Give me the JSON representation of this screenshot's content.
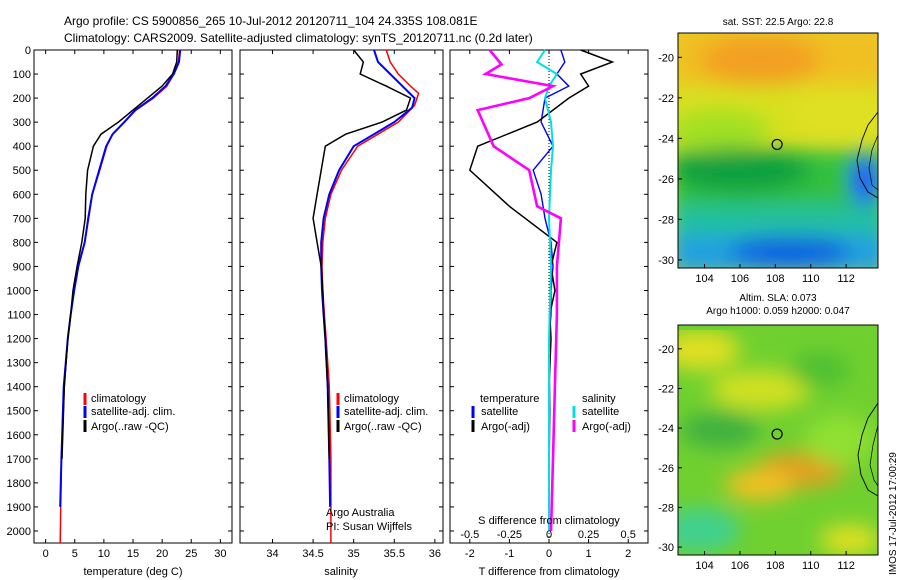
{
  "header": {
    "title_line1": "Argo profile: CS 5900856_265 10-Jul-2012 20120711_104 24.335S 108.081E",
    "title_line2": "Climatology: CARS2009. Satellite-adjusted climatology: synTS_20120711.nc (0.2d later)"
  },
  "colors": {
    "climatology": "#ff0000",
    "satellite": "#0000ff",
    "argo": "#000000",
    "salinity_sat": "#00e0e0",
    "salinity_argo": "#ff00ff"
  },
  "chart_data": [
    {
      "type": "line",
      "id": "temperature",
      "xlabel": "temperature (deg C)",
      "xlim": [
        -2,
        32
      ],
      "ylim": [
        0,
        2050
      ],
      "xticks": [
        0,
        5,
        10,
        15,
        20,
        25,
        30
      ],
      "yticks": [
        0,
        100,
        200,
        300,
        400,
        500,
        600,
        700,
        800,
        900,
        1000,
        1100,
        1200,
        1300,
        1400,
        1500,
        1600,
        1700,
        1800,
        1900,
        2000
      ],
      "legend": [
        "climatology",
        "satellite-adj. clim.",
        "Argo(..raw -QC)"
      ],
      "series": [
        {
          "name": "climatology",
          "color": "#ff0000",
          "x": [
            23,
            22.8,
            22,
            20.8,
            18.5,
            15.5,
            13.5,
            11.5,
            10.5,
            9.3,
            8,
            7.4,
            6.7,
            5.5,
            4.8,
            4.3,
            3.8,
            3.2,
            2.7,
            2.5
          ],
          "y": [
            0,
            50,
            100,
            150,
            200,
            250,
            300,
            350,
            400,
            500,
            600,
            700,
            800,
            900,
            1000,
            1100,
            1200,
            1400,
            1700,
            2050
          ]
        },
        {
          "name": "satellite-adj. clim.",
          "color": "#0000ff",
          "x": [
            23.1,
            22.9,
            22,
            20.6,
            18.3,
            15.4,
            13.5,
            11.5,
            10.4,
            9.2,
            8,
            7.3,
            6.7,
            5.6,
            4.9,
            4.3,
            3.8,
            3.1,
            2.7,
            2.5
          ],
          "y": [
            0,
            50,
            100,
            150,
            200,
            250,
            300,
            350,
            400,
            500,
            600,
            700,
            800,
            900,
            1000,
            1100,
            1200,
            1400,
            1700,
            1900
          ]
        },
        {
          "name": "Argo(..raw -QC)",
          "color": "#000000",
          "x": [
            22.6,
            22.5,
            21.8,
            20,
            17.5,
            15,
            12.5,
            9.5,
            8.2,
            7.2,
            6.9,
            6.8,
            6.2,
            5.4,
            4.7,
            4.3,
            3.8,
            3.2,
            2.8
          ],
          "y": [
            0,
            50,
            100,
            150,
            200,
            250,
            300,
            350,
            400,
            500,
            600,
            700,
            800,
            900,
            1000,
            1100,
            1200,
            1400,
            1700
          ]
        }
      ]
    },
    {
      "type": "line",
      "id": "salinity",
      "xlabel": "salinity",
      "xlim": [
        33.6,
        36.1
      ],
      "ylim": [
        0,
        2050
      ],
      "xticks": [
        34,
        34.5,
        35,
        35.5,
        36
      ],
      "legend": [
        "climatology",
        "satellite-adj. clim.",
        "Argo(..raw -QC)"
      ],
      "annotation": [
        "Argo Australia",
        "PI: Susan Wijffels"
      ],
      "series": [
        {
          "name": "climatology",
          "color": "#ff0000",
          "x": [
            35.4,
            35.45,
            35.55,
            35.7,
            35.8,
            35.75,
            35.55,
            35.3,
            35.05,
            34.85,
            34.72,
            34.65,
            34.62,
            34.61,
            34.62,
            34.64,
            34.66,
            34.7,
            34.72,
            34.72
          ],
          "y": [
            0,
            50,
            100,
            150,
            180,
            230,
            300,
            350,
            400,
            500,
            600,
            700,
            800,
            900,
            1000,
            1100,
            1200,
            1400,
            1700,
            2050
          ]
        },
        {
          "name": "satellite-adj. clim.",
          "color": "#0000ff",
          "x": [
            35.25,
            35.3,
            35.45,
            35.6,
            35.75,
            35.72,
            35.5,
            35.25,
            35,
            34.82,
            34.7,
            34.63,
            34.6,
            34.6,
            34.61,
            34.63,
            34.65,
            34.68,
            34.7,
            34.71
          ],
          "y": [
            0,
            50,
            100,
            150,
            200,
            240,
            300,
            350,
            400,
            500,
            600,
            700,
            800,
            900,
            1000,
            1100,
            1200,
            1400,
            1700,
            1900
          ]
        },
        {
          "name": "Argo(..raw -QC)",
          "color": "#000000",
          "x": [
            35.0,
            35.12,
            35.08,
            35.4,
            35.7,
            35.65,
            35.35,
            34.9,
            34.65,
            34.6,
            34.55,
            34.5,
            34.55,
            34.6,
            34.62,
            34.63,
            34.65,
            34.68,
            34.7
          ],
          "y": [
            0,
            50,
            100,
            150,
            200,
            250,
            300,
            350,
            400,
            500,
            600,
            700,
            800,
            900,
            1000,
            1100,
            1200,
            1400,
            1700
          ]
        }
      ]
    },
    {
      "type": "line",
      "id": "difference",
      "xlabel": "T difference from climatology",
      "xlabel_top": "S difference from climatology",
      "xlim": [
        -2.5,
        2.5
      ],
      "ylim": [
        0,
        2050
      ],
      "xticks": [
        -2,
        -1,
        0,
        1,
        2
      ],
      "xtick_labels_s": [
        "-0.5",
        "-0.25",
        "0",
        "0.25",
        "0.5"
      ],
      "legend_temperature_title": "temperature",
      "legend_salinity_title": "salinity",
      "legend": [
        "satellite",
        "Argo(-adj)",
        "satellite",
        "Argo(-adj)"
      ],
      "series": [
        {
          "name": "satellite",
          "color": "#0000ff",
          "x": [
            0.3,
            0.4,
            0.2,
            0.5,
            -0.1,
            -0.2,
            0.1,
            -0.4,
            -0.2,
            -0.1,
            0.05,
            0.1,
            0.05,
            0.05,
            0,
            0.02,
            0,
            0
          ],
          "y": [
            0,
            50,
            100,
            150,
            200,
            300,
            400,
            500,
            600,
            700,
            800,
            900,
            1000,
            1100,
            1200,
            1500,
            1800,
            2000
          ]
        },
        {
          "name": "Argo(-adj)",
          "color": "#000000",
          "x": [
            0.8,
            1.6,
            0.8,
            1.0,
            0.5,
            -0.3,
            -1.8,
            -2.0,
            -1.0,
            0.2,
            0.05,
            0.15,
            0.02,
            0.05,
            0.0,
            0,
            0
          ],
          "y": [
            0,
            50,
            100,
            150,
            200,
            300,
            400,
            500,
            650,
            800,
            900,
            1000,
            1100,
            1200,
            1400,
            1700,
            2000
          ]
        },
        {
          "name": "salinity satellite",
          "color": "#00e0e0",
          "x": [
            -0.1,
            -0.3,
            0.2,
            0,
            -0.1,
            0.05,
            0.1,
            0.05,
            0,
            0.05,
            0,
            0,
            0
          ],
          "y": [
            0,
            50,
            100,
            150,
            200,
            300,
            400,
            500,
            700,
            900,
            1200,
            1600,
            2000
          ]
        },
        {
          "name": "salinity Argo(-adj)",
          "color": "#ff00ff",
          "x": [
            -1.5,
            -1.2,
            -1.6,
            0.1,
            -0.5,
            -1.8,
            -1.4,
            -0.5,
            -0.3,
            0.3,
            0.25,
            0.2,
            0.2,
            0.15,
            0.1,
            0.05
          ],
          "y": [
            0,
            60,
            100,
            150,
            200,
            250,
            400,
            500,
            650,
            700,
            800,
            900,
            1100,
            1400,
            1700,
            2000
          ]
        }
      ]
    },
    {
      "type": "heatmap",
      "id": "sst-map",
      "title": "sat. SST: 22.5  Argo: 22.8",
      "xlim": [
        102.5,
        113.8
      ],
      "ylim": [
        -30.4,
        -18.8
      ],
      "xticks": [
        104,
        106,
        108,
        110,
        112
      ],
      "yticks": [
        -20,
        -22,
        -24,
        -26,
        -28,
        -30
      ],
      "marker": [
        108.1,
        -24.3
      ]
    },
    {
      "type": "heatmap",
      "id": "sla-map",
      "title": "Altim. SLA: 0.073",
      "subtitle": "Argo h1000: 0.059  h2000: 0.047",
      "xlim": [
        102.5,
        113.8
      ],
      "ylim": [
        -30.4,
        -18.8
      ],
      "xticks": [
        104,
        106,
        108,
        110,
        112
      ],
      "yticks": [
        -20,
        -22,
        -24,
        -26,
        -28,
        -30
      ],
      "marker": [
        108.1,
        -24.3
      ]
    }
  ],
  "footer": {
    "side_text": "IMOS 17-Jul-2012 17:00:29"
  }
}
